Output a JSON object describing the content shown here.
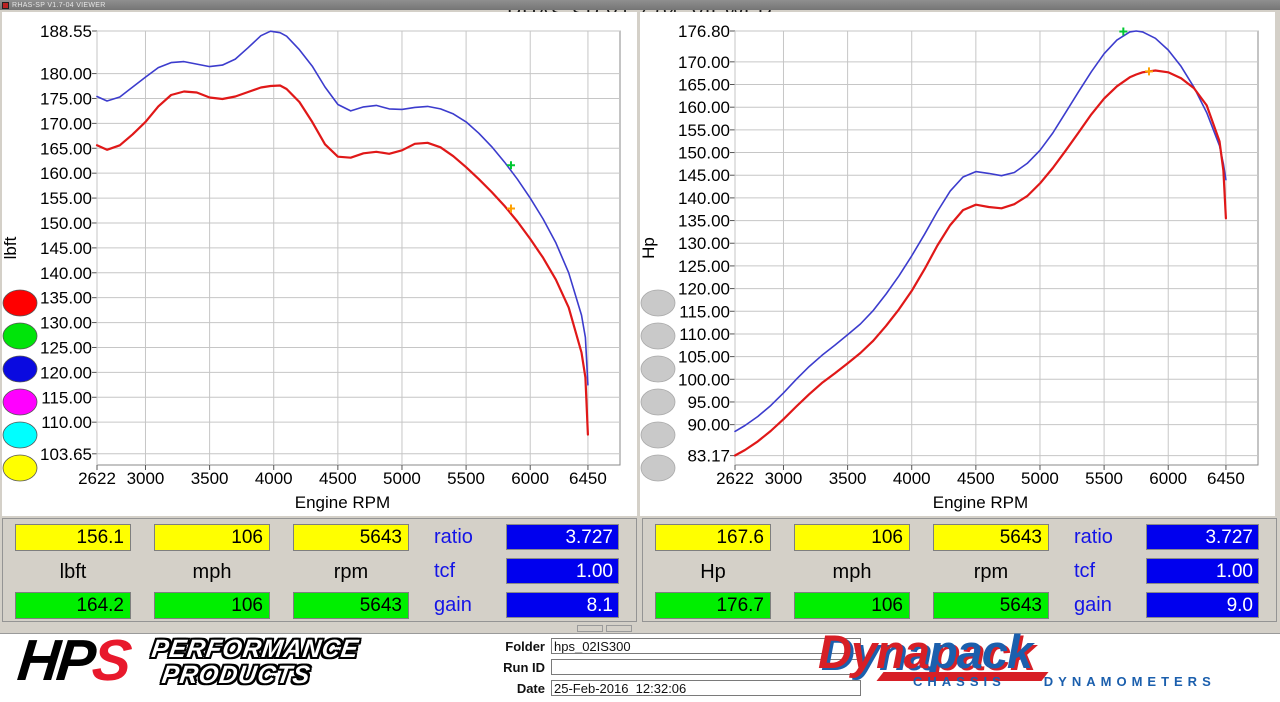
{
  "window": {
    "titlebar": "RHAS-SP V1.7-04 VIEWER",
    "heading": "RHAS-SP V1.7-04  VIEWER"
  },
  "header": {
    "left_label": "Torque (Axle Torque / Gear Ratio):      Corr: NONE",
    "right_label": "Power:      Correction Method: NONE"
  },
  "chart_data": [
    {
      "type": "line",
      "title": "Torque (Axle Torque / Gear Ratio)",
      "correction": "Corr: NONE",
      "xlabel": "Engine RPM",
      "ylabel": "lbft",
      "xlim": [
        2622,
        6700
      ],
      "ylim": [
        101.4,
        188.55
      ],
      "x_tick_vals": [
        2622,
        3000,
        3500,
        4000,
        4500,
        5000,
        5500,
        6000,
        6450
      ],
      "x_tick_labels": [
        "2622",
        "3000",
        "3500",
        "4000",
        "4500",
        "5000",
        "5500",
        "6000",
        "6450"
      ],
      "y_tick_vals": [
        188.55,
        180,
        175,
        170,
        165,
        160,
        155,
        150,
        145,
        140,
        135,
        130,
        125,
        120,
        115,
        110,
        103.65
      ],
      "y_tick_labels": [
        "188.55",
        "180.00",
        "175.00",
        "170.00",
        "165.00",
        "160.00",
        "155.00",
        "150.00",
        "145.00",
        "140.00",
        "135.00",
        "130.00",
        "125.00",
        "120.00",
        "115.00",
        "110.00",
        "103.65"
      ],
      "x": [
        2622,
        2700,
        2800,
        2900,
        3000,
        3100,
        3200,
        3300,
        3400,
        3500,
        3600,
        3700,
        3800,
        3900,
        3975,
        4050,
        4100,
        4200,
        4300,
        4400,
        4500,
        4600,
        4700,
        4800,
        4900,
        5000,
        5100,
        5200,
        5300,
        5400,
        5500,
        5600,
        5700,
        5800,
        5900,
        6000,
        6100,
        6200,
        6300,
        6400,
        6430,
        6450
      ],
      "series": [
        {
          "name": "corrected-run-blue",
          "color": "#3c3ccd",
          "width": 1.6,
          "values": [
            175.4,
            174.5,
            175.3,
            177.3,
            179.3,
            181.2,
            182.2,
            182.4,
            181.9,
            181.4,
            181.7,
            182.9,
            185.2,
            187.6,
            188.5,
            188.2,
            187.5,
            184.8,
            181.5,
            177.3,
            173.8,
            172.5,
            173.3,
            173.6,
            172.9,
            172.8,
            173.2,
            173.4,
            172.9,
            171.9,
            170.3,
            168.0,
            165.3,
            162.2,
            158.8,
            155.0,
            150.8,
            146.0,
            140.0,
            131.5,
            127.0,
            117.5
          ]
        },
        {
          "name": "measured-run-red",
          "color": "#e01818",
          "width": 2.2,
          "values": [
            165.6,
            164.7,
            165.6,
            167.8,
            170.3,
            173.4,
            175.7,
            176.4,
            176.2,
            175.2,
            174.9,
            175.4,
            176.3,
            177.2,
            177.5,
            177.6,
            176.9,
            174.3,
            170.3,
            165.8,
            163.3,
            163.1,
            164.0,
            164.3,
            163.9,
            164.6,
            165.9,
            166.1,
            165.2,
            163.4,
            161.2,
            158.8,
            156.2,
            153.4,
            150.3,
            146.8,
            143.0,
            138.6,
            133.0,
            124.0,
            119.0,
            107.5
          ]
        }
      ],
      "markers": [
        {
          "x": 5850,
          "y": 161.6,
          "color": "#00c832"
        },
        {
          "x": 5850,
          "y": 152.9,
          "color": "#ffa000"
        }
      ],
      "legend_circles": [
        "#ff0000",
        "#00e40a",
        "#0a0ae0",
        "#ff00ff",
        "#00ffff",
        "#ffff00"
      ],
      "legend_stroke": "#555555"
    },
    {
      "type": "line",
      "title": "Power",
      "correction": "Correction Method: NONE",
      "xlabel": "Engine RPM",
      "ylabel": "Hp",
      "xlim": [
        2622,
        6700
      ],
      "ylim": [
        81.1,
        176.8
      ],
      "x_tick_vals": [
        2622,
        3000,
        3500,
        4000,
        4500,
        5000,
        5500,
        6000,
        6450
      ],
      "x_tick_labels": [
        "2622",
        "3000",
        "3500",
        "4000",
        "4500",
        "5000",
        "5500",
        "6000",
        "6450"
      ],
      "y_tick_vals": [
        176.8,
        170,
        165,
        160,
        155,
        150,
        145,
        140,
        135,
        130,
        125,
        120,
        115,
        110,
        105,
        100,
        95,
        90,
        83.17
      ],
      "y_tick_labels": [
        "176.80",
        "170.00",
        "165.00",
        "160.00",
        "155.00",
        "150.00",
        "145.00",
        "140.00",
        "135.00",
        "130.00",
        "125.00",
        "120.00",
        "115.00",
        "110.00",
        "105.00",
        "100.00",
        "95.00",
        "90.00",
        "83.17"
      ],
      "x": [
        2622,
        2700,
        2800,
        2900,
        3000,
        3100,
        3200,
        3300,
        3400,
        3500,
        3600,
        3700,
        3800,
        3900,
        4000,
        4100,
        4200,
        4300,
        4400,
        4500,
        4600,
        4700,
        4800,
        4900,
        5000,
        5100,
        5200,
        5300,
        5400,
        5500,
        5600,
        5700,
        5750,
        5800,
        5900,
        6000,
        6100,
        6200,
        6300,
        6400,
        6430,
        6450
      ],
      "series": [
        {
          "name": "corrected-run-blue",
          "color": "#3c3ccd",
          "width": 1.6,
          "values": [
            88.5,
            89.8,
            91.8,
            94.2,
            97.0,
            100.0,
            102.8,
            105.3,
            107.5,
            109.8,
            112.2,
            115.2,
            118.8,
            122.8,
            127.2,
            132.0,
            137.0,
            141.5,
            144.6,
            145.8,
            145.4,
            144.9,
            145.6,
            147.6,
            150.5,
            154.3,
            158.8,
            163.4,
            167.8,
            171.8,
            174.8,
            176.6,
            176.8,
            176.6,
            175.2,
            172.6,
            169.0,
            164.4,
            158.8,
            151.5,
            147.5,
            144.0
          ]
        },
        {
          "name": "measured-run-red",
          "color": "#e01818",
          "width": 2.2,
          "values": [
            83.2,
            84.4,
            86.3,
            88.6,
            91.2,
            94.0,
            96.7,
            99.2,
            101.3,
            103.5,
            105.8,
            108.5,
            111.8,
            115.4,
            119.5,
            124.3,
            129.5,
            134.0,
            137.3,
            138.5,
            138.0,
            137.7,
            138.6,
            140.4,
            143.2,
            146.6,
            150.4,
            154.4,
            158.4,
            161.9,
            164.6,
            166.6,
            167.2,
            167.7,
            168.1,
            167.7,
            166.4,
            164.2,
            160.4,
            152.5,
            146.0,
            135.5
          ]
        }
      ],
      "markers": [
        {
          "x": 5650,
          "y": 176.7,
          "color": "#00c832"
        },
        {
          "x": 5850,
          "y": 167.9,
          "color": "#ffa000"
        }
      ],
      "legend_circles": [
        "#c9c9c9",
        "#c9c9c9",
        "#c9c9c9",
        "#c9c9c9",
        "#c9c9c9",
        "#c9c9c9"
      ],
      "legend_stroke": "#a8a8a8"
    }
  ],
  "tables": [
    {
      "yellow": [
        "156.1",
        "106",
        "5643"
      ],
      "units": [
        "lbft",
        "mph",
        "rpm"
      ],
      "green": [
        "164.2",
        "106",
        "5643"
      ],
      "params": [
        [
          "ratio",
          "3.727"
        ],
        [
          "tcf",
          "1.00"
        ],
        [
          "gain",
          "8.1"
        ]
      ]
    },
    {
      "yellow": [
        "167.6",
        "106",
        "5643"
      ],
      "units": [
        "Hp",
        "mph",
        "rpm"
      ],
      "green": [
        "176.7",
        "106",
        "5643"
      ],
      "params": [
        [
          "ratio",
          "3.727"
        ],
        [
          "tcf",
          "1.00"
        ],
        [
          "gain",
          "9.0"
        ]
      ]
    }
  ],
  "footer": {
    "fields": [
      {
        "label": "Folder",
        "value": "hps_02IS300"
      },
      {
        "label": "Run ID",
        "value": ""
      },
      {
        "label": "Date",
        "value": "25-Feb-2016  12:32:06"
      }
    ],
    "hps": {
      "hp": "HP",
      "s": "S",
      "line1": "PERFORMANCE",
      "line2": "PRODUCTS"
    },
    "dynapack": {
      "part1": "Dyna",
      "part2": "pack",
      "sub1": "CHASSIS",
      "sub2": "DYNAMOMETERS"
    }
  }
}
